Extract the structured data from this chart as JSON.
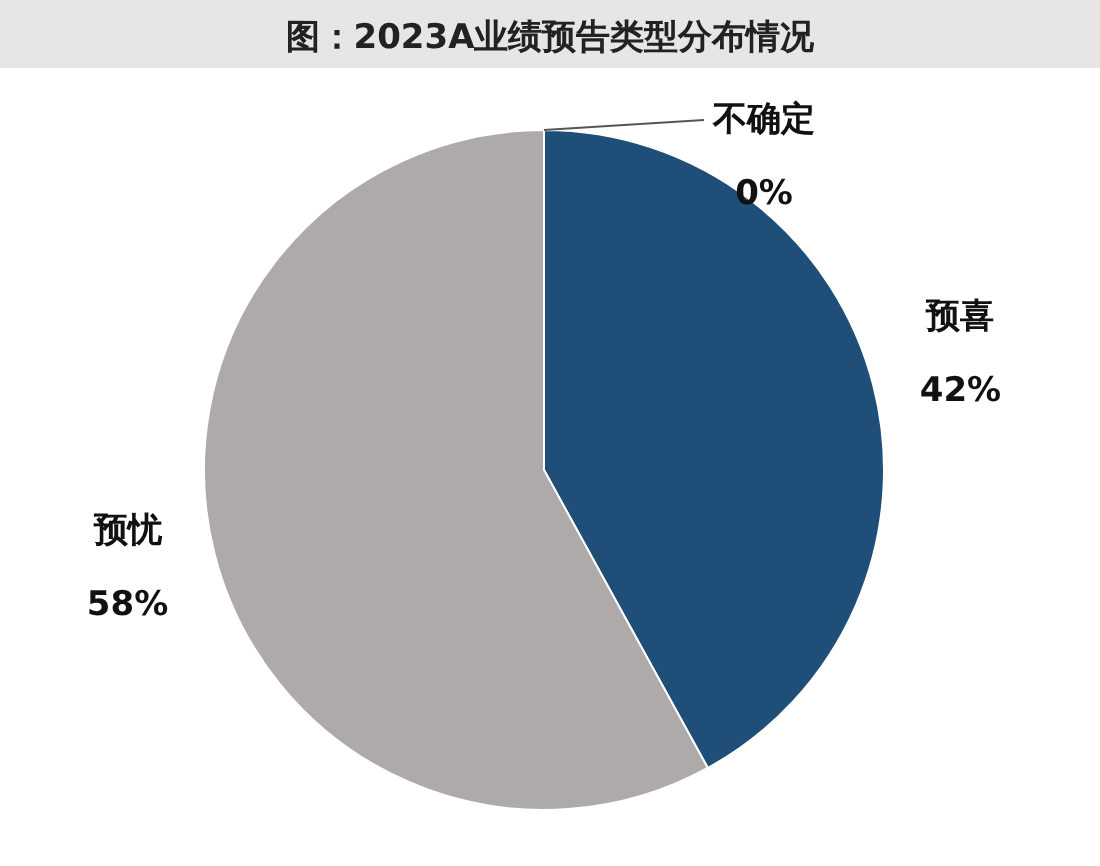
{
  "chart_data": {
    "type": "pie",
    "title": "图：2023A业绩预告类型分布情况",
    "categories": [
      "预喜",
      "预忧",
      "不确定"
    ],
    "values": [
      42,
      58,
      0
    ],
    "colors": [
      "#1f4e79",
      "#aeaaaa",
      "#9dc3e6"
    ],
    "value_labels": [
      "42%",
      "58%",
      "0%"
    ]
  }
}
